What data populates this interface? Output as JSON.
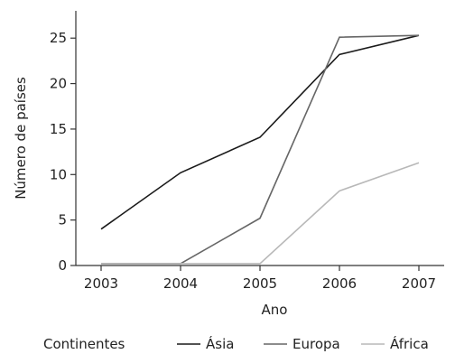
{
  "chart_data": {
    "type": "line",
    "title": "",
    "xlabel": "Ano",
    "ylabel": "Número de países",
    "categories": [
      "2003",
      "2004",
      "2005",
      "2006",
      "2007"
    ],
    "ylim": [
      0,
      28
    ],
    "yticks": [
      0,
      5,
      10,
      15,
      20,
      25
    ],
    "grid": false,
    "legend": {
      "title": "Continentes",
      "placement": "bottom"
    },
    "series": [
      {
        "name": "Ásia",
        "color": "#1a1a1a",
        "values": [
          4,
          10.2,
          14.1,
          23.2,
          25.3
        ]
      },
      {
        "name": "Europa",
        "color": "#666666",
        "values": [
          0.2,
          0.2,
          5.2,
          25.1,
          25.3
        ]
      },
      {
        "name": "África",
        "color": "#b8b8b8",
        "values": [
          0.2,
          0.2,
          0.2,
          8.2,
          11.3
        ]
      }
    ]
  }
}
